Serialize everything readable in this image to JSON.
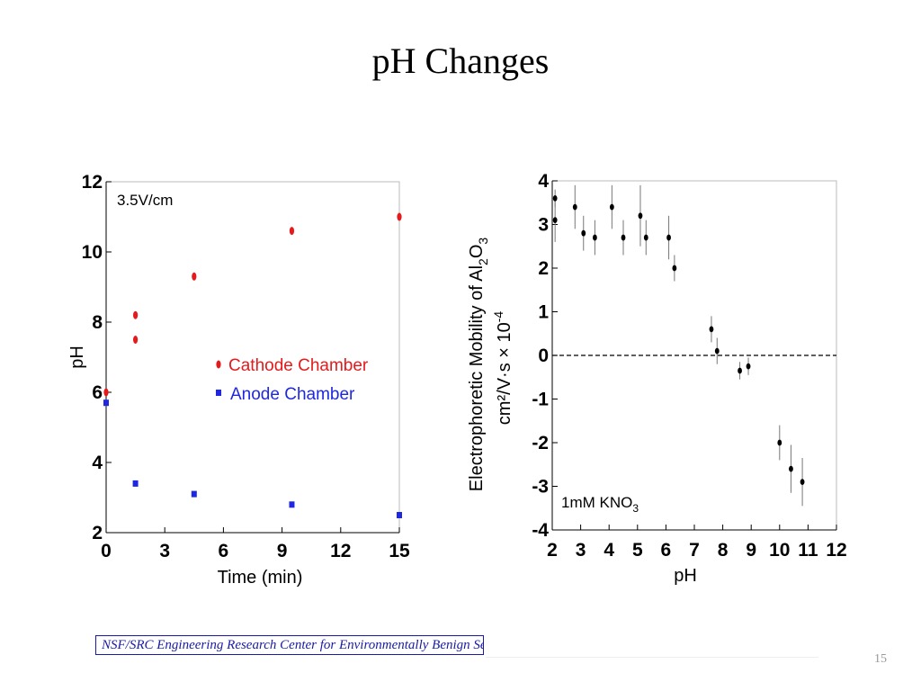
{
  "slide": {
    "title": "pH Changes",
    "footer": "NSF/SRC Engineering Research Center for Environmentally Benign Semiconductor Manufacturing",
    "page_number": "15"
  },
  "chart_data": [
    {
      "type": "scatter",
      "title": "",
      "xlabel": "Time (min)",
      "ylabel": "pH",
      "xlim": [
        0,
        15
      ],
      "ylim": [
        2,
        12
      ],
      "x_ticks": [
        "0",
        "3",
        "6",
        "9",
        "12",
        "15"
      ],
      "y_ticks": [
        "2",
        "4",
        "6",
        "8",
        "10",
        "12"
      ],
      "annotation": "3.5V/cm",
      "legend_position": "right-middle",
      "series": [
        {
          "name": "Cathode Chamber",
          "color": "#e41a1c",
          "points": [
            {
              "x": 0,
              "y": 6.0
            },
            {
              "x": 1.5,
              "y": 7.5
            },
            {
              "x": 1.5,
              "y": 8.2
            },
            {
              "x": 4.5,
              "y": 9.3
            },
            {
              "x": 9.5,
              "y": 10.6
            },
            {
              "x": 15,
              "y": 11.0
            }
          ]
        },
        {
          "name": "Anode Chamber",
          "color": "#1f28e0",
          "points": [
            {
              "x": 0,
              "y": 5.7
            },
            {
              "x": 1.5,
              "y": 3.4
            },
            {
              "x": 4.5,
              "y": 3.1
            },
            {
              "x": 9.5,
              "y": 2.8
            },
            {
              "x": 15,
              "y": 2.5
            }
          ]
        }
      ]
    },
    {
      "type": "scatter",
      "title": "",
      "xlabel": "pH",
      "ylabel_line1": "Electrophoretic Mobility of Al",
      "ylabel_line2": "cm²/V·s  × 10",
      "ylabel_sub_2": "2",
      "ylabel_mid": "O",
      "ylabel_sub_3": "3",
      "ylabel_exp": "-4",
      "xlim": [
        2,
        12
      ],
      "ylim": [
        -4,
        4
      ],
      "x_ticks": [
        "2",
        "3",
        "4",
        "5",
        "6",
        "7",
        "8",
        "9",
        "10",
        "11",
        "12"
      ],
      "y_ticks": [
        "-4",
        "-3",
        "-2",
        "-1",
        "0",
        "1",
        "2",
        "3",
        "4"
      ],
      "annotation_main": "1mM KNO",
      "annotation_sub": "3",
      "zero_line": true,
      "series": [
        {
          "name": "",
          "color": "#000000",
          "points": [
            {
              "x": 2.1,
              "y": 3.1,
              "err": 0.5
            },
            {
              "x": 2.1,
              "y": 3.6,
              "err": 0.2
            },
            {
              "x": 2.8,
              "y": 3.4,
              "err": 0.5
            },
            {
              "x": 3.1,
              "y": 2.8,
              "err": 0.4
            },
            {
              "x": 3.5,
              "y": 2.7,
              "err": 0.4
            },
            {
              "x": 4.1,
              "y": 3.4,
              "err": 0.5
            },
            {
              "x": 4.5,
              "y": 2.7,
              "err": 0.4
            },
            {
              "x": 5.1,
              "y": 3.2,
              "err": 0.7
            },
            {
              "x": 5.3,
              "y": 2.7,
              "err": 0.4
            },
            {
              "x": 6.1,
              "y": 2.7,
              "err": 0.5
            },
            {
              "x": 6.3,
              "y": 2.0,
              "err": 0.3
            },
            {
              "x": 7.6,
              "y": 0.6,
              "err": 0.3
            },
            {
              "x": 7.8,
              "y": 0.1,
              "err": 0.3
            },
            {
              "x": 8.6,
              "y": -0.35,
              "err": 0.2
            },
            {
              "x": 8.9,
              "y": -0.25,
              "err": 0.2
            },
            {
              "x": 10.0,
              "y": -2.0,
              "err": 0.4
            },
            {
              "x": 10.4,
              "y": -2.6,
              "err": 0.55
            },
            {
              "x": 10.8,
              "y": -2.9,
              "err": 0.55
            }
          ]
        }
      ]
    }
  ]
}
